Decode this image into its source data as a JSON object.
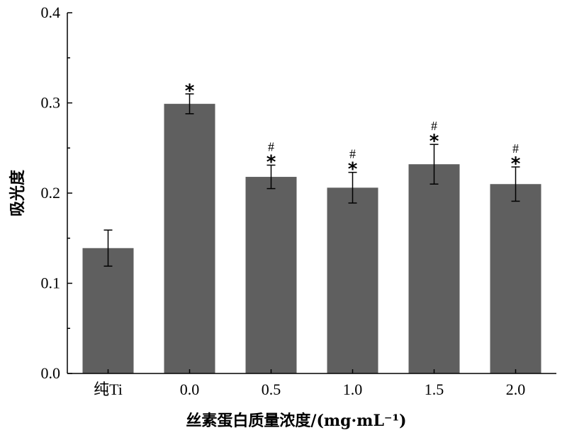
{
  "chart_data": {
    "type": "bar",
    "title": "",
    "xlabel": "丝素蛋白质量浓度/(mg·mL⁻¹)",
    "ylabel": "吸光度",
    "categories": [
      "纯Ti",
      "0.0",
      "0.5",
      "1.0",
      "1.5",
      "2.0"
    ],
    "values": [
      0.139,
      0.299,
      0.218,
      0.206,
      0.232,
      0.21
    ],
    "errors": [
      0.02,
      0.011,
      0.013,
      0.017,
      0.022,
      0.019
    ],
    "annotations": [
      {
        "star": "",
        "hash": ""
      },
      {
        "star": "*",
        "hash": ""
      },
      {
        "star": "*",
        "hash": "#"
      },
      {
        "star": "*",
        "hash": "#"
      },
      {
        "star": "*",
        "hash": "#"
      },
      {
        "star": "*",
        "hash": "#"
      }
    ],
    "ylim": [
      0,
      0.4
    ],
    "yticks": [
      "0.0",
      "0.1",
      "0.2",
      "0.3",
      "0.4"
    ],
    "bar_color": "#5f5f5f"
  }
}
